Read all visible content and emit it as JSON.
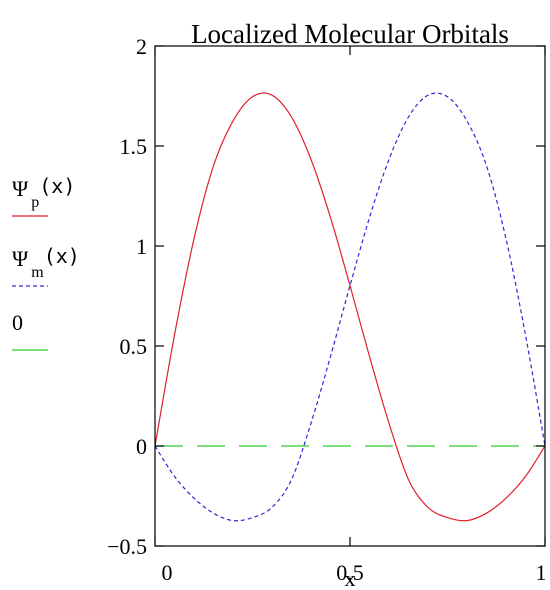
{
  "chart_data": {
    "type": "line",
    "title": "Localized Molecular Orbitals",
    "xlabel": "x",
    "ylabel": "",
    "xlim": [
      0,
      1
    ],
    "ylim": [
      -0.5,
      2
    ],
    "x_ticks": [
      "0",
      "0.5",
      "1"
    ],
    "y_ticks": [
      "−0.5",
      "0",
      "0.5",
      "1",
      "1.5",
      "2"
    ],
    "grid": false,
    "legend_position": "left",
    "series": [
      {
        "name": "Ψp(x)",
        "legend_main": "Ψ",
        "legend_sub": "p",
        "legend_arg": "(x)",
        "color": "#e0202c",
        "style": "solid",
        "x": [
          0,
          0.05,
          0.1,
          0.15,
          0.2,
          0.25,
          0.3,
          0.35,
          0.4,
          0.45,
          0.5,
          0.55,
          0.6,
          0.65,
          0.7,
          0.75,
          0.8,
          0.85,
          0.9,
          0.95,
          1
        ],
        "values": [
          0,
          0.555,
          1.036,
          1.401,
          1.625,
          1.746,
          1.754,
          1.645,
          1.433,
          1.142,
          0.802,
          0.448,
          0.114,
          -0.168,
          -0.307,
          -0.358,
          -0.373,
          -0.336,
          -0.261,
          -0.152,
          0
        ]
      },
      {
        "name": "Ψm(x)",
        "legend_main": "Ψ",
        "legend_sub": "m",
        "legend_arg": "(x)",
        "color": "#2a2ad6",
        "style": "dashed",
        "x": [
          0,
          0.05,
          0.1,
          0.15,
          0.2,
          0.25,
          0.3,
          0.35,
          0.4,
          0.45,
          0.5,
          0.55,
          0.6,
          0.65,
          0.7,
          0.75,
          0.8,
          0.85,
          0.9,
          0.95,
          1
        ],
        "values": [
          0,
          -0.152,
          -0.261,
          -0.336,
          -0.373,
          -0.358,
          -0.307,
          -0.168,
          0.114,
          0.448,
          0.802,
          1.142,
          1.433,
          1.645,
          1.754,
          1.746,
          1.625,
          1.401,
          1.036,
          0.555,
          0
        ]
      },
      {
        "name": "0",
        "legend_main": "0",
        "legend_sub": "",
        "legend_arg": "",
        "color": "#2ecc2e",
        "style": "longdash",
        "x": [
          0,
          1
        ],
        "values": [
          0,
          0
        ]
      }
    ]
  }
}
